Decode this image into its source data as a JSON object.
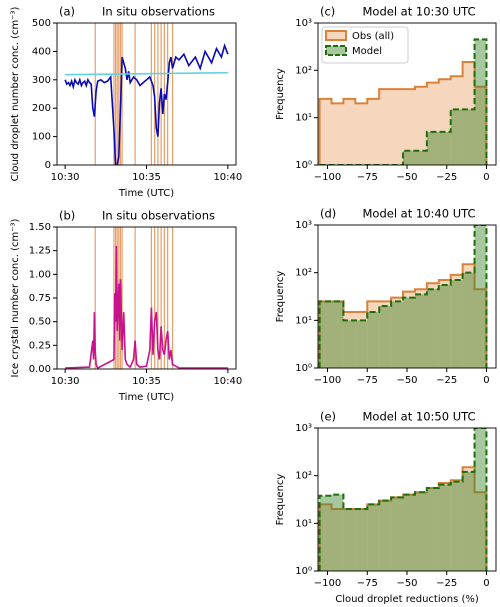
{
  "chart_data": [
    {
      "type": "line",
      "panel": "(a)",
      "title": "In situ observations",
      "xlabel": "Time (UTC)",
      "ylabel": "Cloud droplet number conc. (cm⁻³)",
      "xlim": [
        29.5,
        40.5
      ],
      "xticks": [
        {
          "value": 30,
          "label": "10:30"
        },
        {
          "value": 35,
          "label": "10:35"
        },
        {
          "value": 40,
          "label": "10:40"
        }
      ],
      "ylim": [
        0,
        500
      ],
      "yticks": [
        0,
        100,
        200,
        300,
        400,
        500
      ],
      "vlines": {
        "color": "#e5a06a",
        "x": [
          31.85,
          33.0,
          33.1,
          33.2,
          33.3,
          33.4,
          33.5,
          34.3,
          35.3,
          35.5,
          35.7,
          35.9,
          36.1,
          36.3,
          36.6
        ]
      },
      "series": [
        {
          "color": "#0a0ab4",
          "x": [
            30.0,
            30.1,
            30.2,
            30.3,
            30.4,
            30.5,
            30.6,
            30.7,
            30.8,
            30.9,
            31.0,
            31.1,
            31.2,
            31.3,
            31.4,
            31.5,
            31.6,
            31.7,
            31.8,
            31.9,
            32.0,
            32.2,
            32.4,
            32.6,
            32.8,
            33.0,
            33.1,
            33.2,
            33.3,
            33.4,
            33.5,
            33.6,
            33.7,
            33.8,
            33.9,
            34.0,
            34.2,
            34.4,
            34.6,
            34.8,
            35.0,
            35.2,
            35.4,
            35.5,
            35.6,
            35.7,
            35.8,
            35.9,
            36.0,
            36.1,
            36.2,
            36.3,
            36.4,
            36.5,
            36.6,
            36.8,
            37.0,
            37.3,
            37.6,
            38.0,
            38.3,
            38.6,
            39.0,
            39.3,
            39.6,
            39.8,
            40.0
          ],
          "values": [
            300,
            285,
            290,
            280,
            295,
            275,
            300,
            290,
            285,
            300,
            280,
            290,
            295,
            280,
            300,
            290,
            285,
            200,
            170,
            260,
            295,
            300,
            290,
            295,
            310,
            120,
            0,
            0,
            30,
            200,
            380,
            360,
            340,
            300,
            330,
            290,
            310,
            300,
            280,
            290,
            300,
            310,
            280,
            240,
            130,
            100,
            220,
            270,
            180,
            250,
            230,
            290,
            360,
            380,
            340,
            380,
            370,
            390,
            350,
            380,
            340,
            400,
            360,
            410,
            380,
            420,
            390
          ]
        },
        {
          "color": "#5fd3e0",
          "x": [
            30,
            40
          ],
          "values": [
            318,
            325
          ]
        }
      ]
    },
    {
      "type": "line",
      "panel": "(b)",
      "title": "In situ observations",
      "xlabel": "Time (UTC)",
      "ylabel": "Ice crystal number conc. (cm⁻³)",
      "xlim": [
        29.5,
        40.5
      ],
      "xticks": [
        {
          "value": 30,
          "label": "10:30"
        },
        {
          "value": 35,
          "label": "10:35"
        },
        {
          "value": 40,
          "label": "10:40"
        }
      ],
      "ylim": [
        0,
        1.5
      ],
      "yticks": [
        {
          "value": 0,
          "label": "0.00"
        },
        {
          "value": 0.25,
          "label": "0.25"
        },
        {
          "value": 0.5,
          "label": "0.50"
        },
        {
          "value": 0.75,
          "label": "0.75"
        },
        {
          "value": 1,
          "label": "1.00"
        },
        {
          "value": 1.25,
          "label": "1.25"
        },
        {
          "value": 1.5,
          "label": "1.50"
        }
      ],
      "vlines": {
        "color": "#e5a06a",
        "x": [
          31.85,
          33.0,
          33.1,
          33.2,
          33.3,
          33.4,
          33.5,
          34.3,
          35.3,
          35.5,
          35.7,
          35.9,
          36.1,
          36.3,
          36.6
        ]
      },
      "series": [
        {
          "color": "#c8148c",
          "x": [
            30.0,
            31.5,
            31.7,
            31.75,
            31.8,
            31.85,
            31.9,
            32.0,
            33.0,
            33.05,
            33.1,
            33.15,
            33.2,
            33.3,
            33.35,
            33.4,
            33.5,
            33.6,
            33.7,
            33.8,
            34.0,
            34.2,
            34.3,
            34.4,
            34.6,
            35.0,
            35.2,
            35.3,
            35.4,
            35.5,
            35.6,
            35.7,
            35.8,
            35.9,
            36.0,
            36.1,
            36.2,
            36.3,
            36.4,
            36.5,
            36.6,
            37.0,
            40.0
          ],
          "values": [
            0.01,
            0.02,
            0.3,
            0.1,
            0.6,
            0.2,
            0.05,
            0.01,
            0.1,
            0.8,
            0.5,
            1.3,
            0.4,
            0.9,
            0.3,
            0.95,
            0.2,
            0.6,
            0.1,
            0.05,
            0.02,
            0.1,
            0.3,
            0.05,
            0.02,
            0.03,
            0.2,
            0.65,
            0.15,
            0.5,
            0.6,
            0.2,
            0.1,
            0.45,
            0.2,
            0.15,
            0.3,
            0.4,
            0.1,
            0.2,
            0.05,
            0.01,
            0.01
          ]
        }
      ]
    },
    {
      "type": "histogram",
      "panel": "(c)",
      "title": "Model at 10:30 UTC",
      "ylabel": "Frequency",
      "legend": "upper left",
      "log_y": true,
      "xlim": [
        -106,
        6
      ],
      "xticks": [
        {
          "value": -100,
          "label": "−100"
        },
        {
          "value": -75,
          "label": "−75"
        },
        {
          "value": -50,
          "label": "−50"
        },
        {
          "value": -25,
          "label": "−25"
        },
        0
      ],
      "ylim": [
        1,
        1000
      ],
      "yticks": [
        {
          "value": 1,
          "label": "10⁰"
        },
        {
          "value": 10,
          "label": "10¹"
        },
        {
          "value": 100,
          "label": "10²"
        },
        {
          "value": 1000,
          "label": "10³"
        }
      ],
      "bins": [
        -105,
        -97.5,
        -90,
        -82.5,
        -75,
        -67.5,
        -60,
        -52.5,
        -45,
        -37.5,
        -30,
        -22.5,
        -15,
        -7.5,
        0
      ],
      "series": [
        {
          "name": "Obs (all)",
          "color": "#d9823b",
          "values": [
            25,
            20,
            25,
            20,
            25,
            40,
            40,
            40,
            45,
            55,
            65,
            75,
            150,
            45
          ]
        },
        {
          "name": "Model",
          "color": "#1f6e0c",
          "values": [
            0,
            0,
            0,
            0,
            0,
            0,
            0,
            2,
            2,
            5,
            5,
            15,
            15,
            450
          ]
        }
      ]
    },
    {
      "type": "histogram",
      "panel": "(d)",
      "title": "Model at 10:40 UTC",
      "ylabel": "Frequency",
      "log_y": true,
      "xlim": [
        -106,
        6
      ],
      "xticks": [
        {
          "value": -100,
          "label": "−100"
        },
        {
          "value": -75,
          "label": "−75"
        },
        {
          "value": -50,
          "label": "−50"
        },
        {
          "value": -25,
          "label": "−25"
        },
        0
      ],
      "ylim": [
        1,
        1000
      ],
      "yticks": [
        {
          "value": 1,
          "label": "10⁰"
        },
        {
          "value": 10,
          "label": "10¹"
        },
        {
          "value": 100,
          "label": "10²"
        },
        {
          "value": 1000,
          "label": "10³"
        }
      ],
      "bins": [
        -105,
        -97.5,
        -90,
        -82.5,
        -75,
        -67.5,
        -60,
        -52.5,
        -45,
        -37.5,
        -30,
        -22.5,
        -15,
        -7.5,
        0
      ],
      "series": [
        {
          "name": "Obs (all)",
          "color": "#d9823b",
          "values": [
            25,
            25,
            15,
            15,
            25,
            25,
            30,
            40,
            45,
            60,
            70,
            90,
            150,
            45
          ]
        },
        {
          "name": "Model",
          "color": "#1f6e0c",
          "values": [
            25,
            25,
            10,
            10,
            15,
            20,
            25,
            30,
            35,
            45,
            55,
            70,
            100,
            1000
          ]
        }
      ]
    },
    {
      "type": "histogram",
      "panel": "(e)",
      "title": "Model at 10:50 UTC",
      "xlabel": "Cloud droplet reductions (%)",
      "ylabel": "Frequency",
      "log_y": true,
      "xlim": [
        -106,
        6
      ],
      "xticks": [
        {
          "value": -100,
          "label": "−100"
        },
        {
          "value": -75,
          "label": "−75"
        },
        {
          "value": -50,
          "label": "−50"
        },
        {
          "value": -25,
          "label": "−25"
        },
        0
      ],
      "ylim": [
        1,
        1000
      ],
      "yticks": [
        {
          "value": 1,
          "label": "10⁰"
        },
        {
          "value": 10,
          "label": "10¹"
        },
        {
          "value": 100,
          "label": "10²"
        },
        {
          "value": 1000,
          "label": "10³"
        }
      ],
      "bins": [
        -105,
        -97.5,
        -90,
        -82.5,
        -75,
        -67.5,
        -60,
        -52.5,
        -45,
        -37.5,
        -30,
        -22.5,
        -15,
        -7.5,
        0
      ],
      "series": [
        {
          "name": "Obs (all)",
          "color": "#d9823b",
          "values": [
            25,
            20,
            20,
            20,
            25,
            30,
            35,
            40,
            45,
            55,
            70,
            80,
            150,
            45
          ]
        },
        {
          "name": "Model",
          "color": "#1f6e0c",
          "values": [
            38,
            40,
            20,
            20,
            25,
            30,
            35,
            40,
            45,
            55,
            65,
            75,
            120,
            1000
          ]
        }
      ]
    }
  ]
}
